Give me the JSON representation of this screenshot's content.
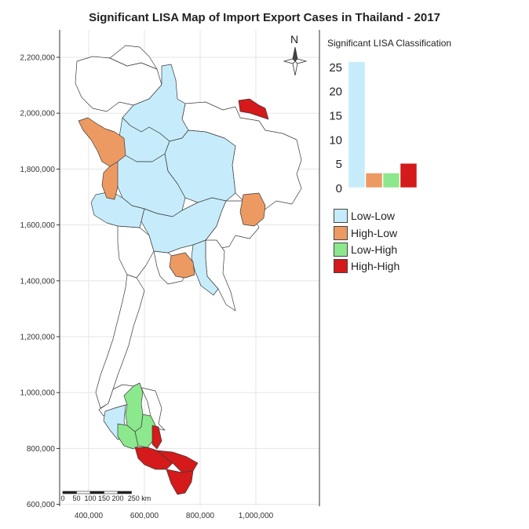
{
  "title": "Significant LISA Map of Import Export Cases in Thailand - 2017",
  "north_label": "N",
  "scale_bar": {
    "labels": [
      "0",
      "50",
      "100",
      "150",
      "200",
      "250 km"
    ]
  },
  "colors": {
    "Low-Low": "#c6ecfb",
    "High-Low": "#ec9a62",
    "Low-High": "#8ce88c",
    "High-High": "#d41a1a",
    "none": "#ffffff"
  },
  "legend": {
    "title": "Significant LISA Classification",
    "items": [
      {
        "label": "Low-Low",
        "color": "#c6ecfb"
      },
      {
        "label": "High-Low",
        "color": "#ec9a62"
      },
      {
        "label": "Low-High",
        "color": "#8ce88c"
      },
      {
        "label": "High-High",
        "color": "#d41a1a"
      }
    ]
  },
  "chart_data": [
    {
      "type": "map",
      "title": "Significant LISA Map of Import Export Cases in Thailand - 2017",
      "x_ticks": [
        "400,000",
        "600,000",
        "800,000",
        "1,000,000"
      ],
      "x_tick_values": [
        400000,
        600000,
        800000,
        1000000
      ],
      "y_ticks": [
        "2,200,000",
        "2,000,000",
        "1,800,000",
        "1,600,000",
        "1,400,000",
        "1,200,000",
        "1,000,000",
        "800,000",
        "600,000"
      ],
      "y_tick_values": [
        2200000,
        2000000,
        1800000,
        1600000,
        1400000,
        1200000,
        1000000,
        800000,
        600000
      ],
      "grid": true,
      "categories": [
        "Low-Low",
        "High-Low",
        "Low-High",
        "High-High"
      ]
    },
    {
      "type": "bar",
      "title": "Significant LISA Classification",
      "categories": [
        "Low-Low",
        "High-Low",
        "Low-High",
        "High-High"
      ],
      "values": [
        26,
        3,
        3,
        5
      ],
      "y_ticks": [
        0,
        5,
        10,
        15,
        20,
        25
      ],
      "ylim": [
        0,
        26
      ]
    }
  ]
}
